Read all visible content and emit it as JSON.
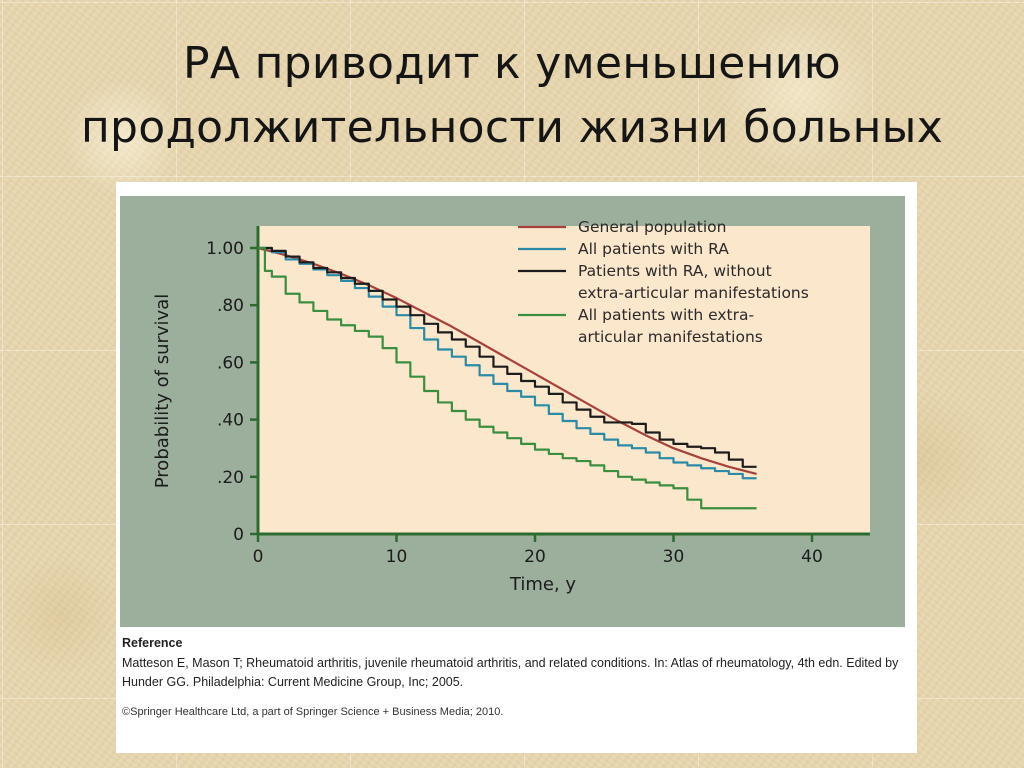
{
  "slide": {
    "title_line1": "РА приводит к уменьшению",
    "title_line2": "продолжительности жизни больных"
  },
  "reference": {
    "heading": "Reference",
    "text": "Matteson E, Mason T; Rheumatoid arthritis, juvenile rheumatoid arthritis, and related conditions. In: Atlas of rheumatology, 4th edn. Edited by Hunder GG. Philadelphia: Current Medicine Group, Inc; 2005.",
    "copyright": "©Springer Healthcare Ltd, a part of Springer Science + Business Media; 2010."
  },
  "colors": {
    "frame": "#9caf9d",
    "plot_bg": "#fbe7cc",
    "axis": "#2c6b2e",
    "general": "#a8413b",
    "all_ra": "#2b8aa6",
    "without_extra": "#1c1c1c",
    "with_extra": "#3a8e3f"
  },
  "chart_data": {
    "type": "line",
    "title": "",
    "xlabel": "Time, y",
    "ylabel": "Probability of survival",
    "xlim": [
      0,
      40
    ],
    "ylim": [
      0,
      1.0
    ],
    "x_ticks": [
      "0",
      "10",
      "20",
      "30",
      "40"
    ],
    "y_ticks": [
      "0",
      ".20",
      ".40",
      ".60",
      ".80",
      "1.00"
    ],
    "y_tick_values": [
      0,
      0.2,
      0.4,
      0.6,
      0.8,
      1.0
    ],
    "x_tick_values": [
      0,
      10,
      20,
      30,
      40
    ],
    "legend_position": "top-right",
    "series": [
      {
        "name": "General population",
        "color_key": "general",
        "legend_lines": [
          "General population"
        ],
        "step": false,
        "points": [
          [
            0,
            1.0
          ],
          [
            2,
            0.975
          ],
          [
            4,
            0.945
          ],
          [
            6,
            0.91
          ],
          [
            8,
            0.87
          ],
          [
            10,
            0.825
          ],
          [
            12,
            0.775
          ],
          [
            14,
            0.725
          ],
          [
            16,
            0.67
          ],
          [
            18,
            0.615
          ],
          [
            20,
            0.56
          ],
          [
            22,
            0.505
          ],
          [
            24,
            0.45
          ],
          [
            26,
            0.395
          ],
          [
            28,
            0.345
          ],
          [
            30,
            0.3
          ],
          [
            32,
            0.265
          ],
          [
            34,
            0.235
          ],
          [
            36,
            0.21
          ]
        ]
      },
      {
        "name": "All patients with RA",
        "color_key": "all_ra",
        "legend_lines": [
          "All patients with RA"
        ],
        "step": true,
        "points": [
          [
            0,
            1.0
          ],
          [
            1,
            0.985
          ],
          [
            2,
            0.96
          ],
          [
            3,
            0.945
          ],
          [
            4,
            0.925
          ],
          [
            5,
            0.905
          ],
          [
            6,
            0.885
          ],
          [
            7,
            0.86
          ],
          [
            8,
            0.83
          ],
          [
            9,
            0.795
          ],
          [
            10,
            0.765
          ],
          [
            11,
            0.72
          ],
          [
            12,
            0.68
          ],
          [
            13,
            0.645
          ],
          [
            14,
            0.62
          ],
          [
            15,
            0.59
          ],
          [
            16,
            0.555
          ],
          [
            17,
            0.525
          ],
          [
            18,
            0.5
          ],
          [
            19,
            0.48
          ],
          [
            20,
            0.45
          ],
          [
            21,
            0.42
          ],
          [
            22,
            0.395
          ],
          [
            23,
            0.37
          ],
          [
            24,
            0.35
          ],
          [
            25,
            0.33
          ],
          [
            26,
            0.31
          ],
          [
            27,
            0.3
          ],
          [
            28,
            0.285
          ],
          [
            29,
            0.265
          ],
          [
            30,
            0.25
          ],
          [
            31,
            0.24
          ],
          [
            32,
            0.23
          ],
          [
            33,
            0.22
          ],
          [
            34,
            0.21
          ],
          [
            35,
            0.195
          ],
          [
            36,
            0.195
          ]
        ]
      },
      {
        "name": "Patients with RA, without extra-articular manifestations",
        "color_key": "without_extra",
        "legend_lines": [
          "Patients with RA, without",
          "extra-articular manifestations"
        ],
        "step": true,
        "points": [
          [
            0,
            1.0
          ],
          [
            1,
            0.99
          ],
          [
            2,
            0.97
          ],
          [
            3,
            0.95
          ],
          [
            4,
            0.93
          ],
          [
            5,
            0.915
          ],
          [
            6,
            0.895
          ],
          [
            7,
            0.875
          ],
          [
            8,
            0.85
          ],
          [
            9,
            0.82
          ],
          [
            10,
            0.795
          ],
          [
            11,
            0.765
          ],
          [
            12,
            0.735
          ],
          [
            13,
            0.705
          ],
          [
            14,
            0.68
          ],
          [
            15,
            0.655
          ],
          [
            16,
            0.62
          ],
          [
            17,
            0.585
          ],
          [
            18,
            0.56
          ],
          [
            19,
            0.535
          ],
          [
            20,
            0.515
          ],
          [
            21,
            0.49
          ],
          [
            22,
            0.46
          ],
          [
            23,
            0.435
          ],
          [
            24,
            0.41
          ],
          [
            25,
            0.39
          ],
          [
            26,
            0.39
          ],
          [
            27,
            0.385
          ],
          [
            28,
            0.355
          ],
          [
            29,
            0.33
          ],
          [
            30,
            0.315
          ],
          [
            31,
            0.305
          ],
          [
            32,
            0.3
          ],
          [
            33,
            0.285
          ],
          [
            34,
            0.26
          ],
          [
            35,
            0.235
          ],
          [
            36,
            0.235
          ]
        ]
      },
      {
        "name": "All patients with extra-articular manifestations",
        "color_key": "with_extra",
        "legend_lines": [
          "All patients with extra-",
          "articular manifestations"
        ],
        "step": true,
        "points": [
          [
            0,
            1.0
          ],
          [
            0.5,
            0.92
          ],
          [
            1,
            0.9
          ],
          [
            2,
            0.84
          ],
          [
            3,
            0.81
          ],
          [
            4,
            0.78
          ],
          [
            5,
            0.75
          ],
          [
            6,
            0.73
          ],
          [
            7,
            0.71
          ],
          [
            8,
            0.69
          ],
          [
            9,
            0.65
          ],
          [
            10,
            0.6
          ],
          [
            11,
            0.55
          ],
          [
            12,
            0.5
          ],
          [
            13,
            0.46
          ],
          [
            14,
            0.43
          ],
          [
            15,
            0.4
          ],
          [
            16,
            0.375
          ],
          [
            17,
            0.355
          ],
          [
            18,
            0.335
          ],
          [
            19,
            0.315
          ],
          [
            20,
            0.295
          ],
          [
            21,
            0.28
          ],
          [
            22,
            0.265
          ],
          [
            23,
            0.255
          ],
          [
            24,
            0.24
          ],
          [
            25,
            0.22
          ],
          [
            26,
            0.2
          ],
          [
            27,
            0.19
          ],
          [
            28,
            0.18
          ],
          [
            29,
            0.17
          ],
          [
            30,
            0.16
          ],
          [
            31,
            0.12
          ],
          [
            32,
            0.09
          ],
          [
            33,
            0.09
          ],
          [
            34,
            0.09
          ],
          [
            35,
            0.09
          ],
          [
            36,
            0.09
          ]
        ]
      }
    ]
  }
}
